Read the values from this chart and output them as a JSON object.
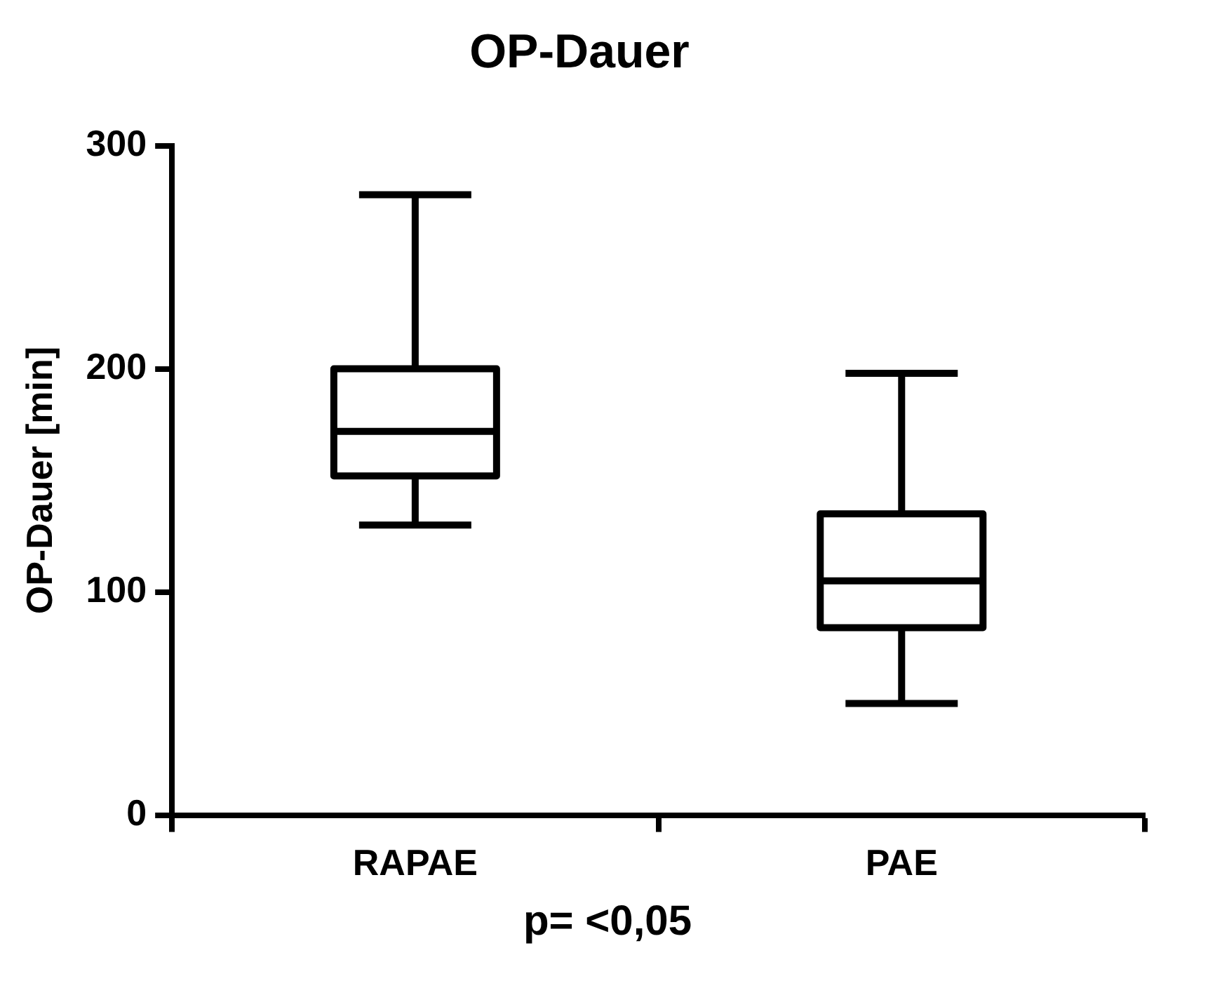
{
  "chart_data": {
    "type": "box",
    "title": "OP-Dauer",
    "ylabel": "OP-Dauer [min]",
    "categories": [
      "RAPAE",
      "PAE"
    ],
    "boxes": [
      {
        "low": 130,
        "q1": 152,
        "median": 172,
        "q3": 200,
        "high": 278
      },
      {
        "low": 50,
        "q1": 84,
        "median": 105,
        "q3": 135,
        "high": 198
      }
    ],
    "color": "#000000",
    "ylim": [
      0,
      300
    ],
    "yticks": [
      0,
      100,
      200,
      300
    ],
    "grid": false,
    "annotations": [
      "p= <0,05"
    ]
  }
}
